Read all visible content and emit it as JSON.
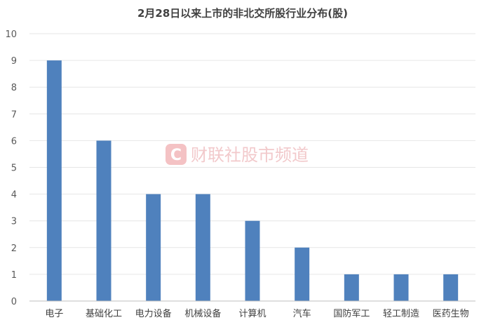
{
  "chart_data": {
    "type": "bar",
    "title": "2月28日以来上市的非北交所股行业分布(股)",
    "categories": [
      "电子",
      "基础化工",
      "电力设备",
      "机械设备",
      "计算机",
      "汽车",
      "国防军工",
      "轻工制造",
      "医药生物"
    ],
    "values": [
      9,
      6,
      4,
      4,
      3,
      2,
      1,
      1,
      1
    ],
    "ylim": [
      0,
      10
    ],
    "yticks": [
      0,
      1,
      2,
      3,
      4,
      5,
      6,
      7,
      8,
      9,
      10
    ],
    "grid": true,
    "legend": "none",
    "bar_color": "#4f81bd"
  },
  "watermark": {
    "text": "财联社股市频道",
    "logo_letter": "C",
    "color": "#e8868b"
  }
}
